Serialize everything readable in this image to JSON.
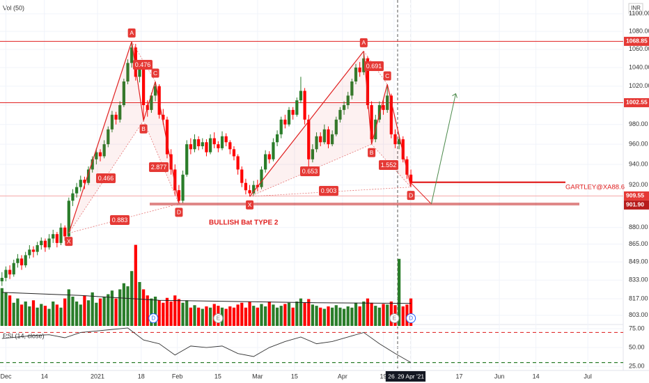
{
  "chart_data": {
    "type": "candlestick",
    "currency": "INR",
    "xlim": [
      -0.5,
      158
    ],
    "ylim": [
      793,
      1116
    ],
    "log_scale": true,
    "grid": true,
    "up_color": "#2a7d2a",
    "down_color": "#ff0000",
    "yticks": [
      {
        "value": 1100,
        "label": "1100.00"
      },
      {
        "value": 1080,
        "label": "1080.00"
      },
      {
        "value": 1060,
        "label": "1060.00"
      },
      {
        "value": 1040,
        "label": "1040.00"
      },
      {
        "value": 1020,
        "label": "1020.00"
      },
      {
        "value": 1000,
        "label": "1000.00"
      },
      {
        "value": 980,
        "label": "980.00"
      },
      {
        "value": 960,
        "label": "960.00"
      },
      {
        "value": 940,
        "label": "940.00"
      },
      {
        "value": 920,
        "label": "920.00"
      },
      {
        "value": 880,
        "label": "880.00"
      },
      {
        "value": 865,
        "label": "865.00"
      },
      {
        "value": 849,
        "label": "849.00"
      },
      {
        "value": 833,
        "label": "833.00"
      },
      {
        "value": 817,
        "label": "817.00"
      },
      {
        "value": 803,
        "label": "803.00"
      }
    ],
    "xticks": [
      {
        "value": 1,
        "label": "Dec"
      },
      {
        "value": 10.8,
        "label": "14"
      },
      {
        "value": 24.3,
        "label": "2021"
      },
      {
        "value": 35.4,
        "label": "18"
      },
      {
        "value": 44.6,
        "label": "Feb"
      },
      {
        "value": 54.9,
        "label": "15"
      },
      {
        "value": 65,
        "label": "Mar"
      },
      {
        "value": 74.4,
        "label": "15"
      },
      {
        "value": 86.6,
        "label": "Apr"
      },
      {
        "value": 97,
        "label": "19"
      },
      {
        "value": 99.7,
        "label": "26 A"
      },
      {
        "value": 104,
        "label": "29 Apr '21"
      },
      {
        "value": 116.3,
        "label": "17"
      },
      {
        "value": 126.5,
        "label": "Jun"
      },
      {
        "value": 135.8,
        "label": "14"
      },
      {
        "value": 149,
        "label": "Jul"
      }
    ],
    "candles": [
      [
        832,
        840,
        828,
        835
      ],
      [
        835,
        845,
        832,
        842
      ],
      [
        842,
        846,
        834,
        838
      ],
      [
        838,
        851,
        836,
        848
      ],
      [
        848,
        856,
        844,
        852
      ],
      [
        852,
        855,
        842,
        846
      ],
      [
        846,
        858,
        844,
        855
      ],
      [
        855,
        864,
        852,
        860
      ],
      [
        860,
        863,
        853,
        858
      ],
      [
        858,
        867,
        855,
        864
      ],
      [
        864,
        871,
        860,
        868
      ],
      [
        868,
        870,
        858,
        862
      ],
      [
        862,
        874,
        860,
        870
      ],
      [
        870,
        878,
        866,
        874
      ],
      [
        874,
        876,
        862,
        866
      ],
      [
        866,
        884,
        864,
        880
      ],
      [
        880,
        882,
        868,
        872
      ],
      [
        872,
        908,
        870,
        905
      ],
      [
        905,
        916,
        900,
        912
      ],
      [
        912,
        922,
        908,
        918
      ],
      [
        918,
        929,
        914,
        925
      ],
      [
        925,
        928,
        916,
        922
      ],
      [
        922,
        938,
        920,
        935
      ],
      [
        935,
        948,
        932,
        945
      ],
      [
        945,
        956,
        940,
        952
      ],
      [
        952,
        955,
        943,
        948
      ],
      [
        948,
        964,
        946,
        960
      ],
      [
        960,
        978,
        957,
        975
      ],
      [
        975,
        994,
        972,
        990
      ],
      [
        990,
        993,
        980,
        985
      ],
      [
        985,
        1004,
        982,
        1000
      ],
      [
        1000,
        1028,
        998,
        1025
      ],
      [
        1025,
        1049,
        1022,
        1045
      ],
      [
        1045,
        1068.85,
        1040,
        1062
      ],
      [
        1062,
        1066,
        1026,
        1030
      ],
      [
        1030,
        1046,
        1024,
        1042
      ],
      [
        1042,
        1044,
        984,
        1000
      ],
      [
        1000,
        1005,
        988,
        995
      ],
      [
        995,
        1013,
        992,
        1010
      ],
      [
        1010,
        1025,
        1004,
        1020
      ],
      [
        1020,
        1022,
        986,
        990
      ],
      [
        990,
        996,
        980,
        985
      ],
      [
        985,
        988,
        946,
        950
      ],
      [
        950,
        955,
        930,
        935
      ],
      [
        935,
        940,
        910,
        915
      ],
      [
        915,
        920,
        902,
        905
      ],
      [
        905,
        934,
        903,
        930
      ],
      [
        930,
        964,
        928,
        960
      ],
      [
        960,
        966,
        950,
        955
      ],
      [
        955,
        970,
        952,
        965
      ],
      [
        965,
        968,
        954,
        958
      ],
      [
        958,
        966,
        955,
        962
      ],
      [
        962,
        965,
        948,
        952
      ],
      [
        952,
        970,
        950,
        966
      ],
      [
        966,
        972,
        956,
        960
      ],
      [
        960,
        963,
        952,
        956
      ],
      [
        956,
        973,
        954,
        968
      ],
      [
        968,
        971,
        958,
        962
      ],
      [
        962,
        964,
        950,
        955
      ],
      [
        955,
        958,
        944,
        948
      ],
      [
        948,
        950,
        930,
        935
      ],
      [
        935,
        938,
        918,
        922
      ],
      [
        922,
        926,
        911,
        915
      ],
      [
        915,
        920,
        909,
        912
      ],
      [
        912,
        924,
        910,
        920
      ],
      [
        920,
        925,
        914,
        918
      ],
      [
        918,
        938,
        916,
        935
      ],
      [
        935,
        954,
        932,
        950
      ],
      [
        950,
        953,
        941,
        945
      ],
      [
        945,
        966,
        943,
        962
      ],
      [
        962,
        974,
        958,
        970
      ],
      [
        970,
        988,
        966,
        985
      ],
      [
        985,
        990,
        976,
        980
      ],
      [
        980,
        998,
        978,
        995
      ],
      [
        995,
        998,
        985,
        990
      ],
      [
        990,
        1008,
        988,
        1005
      ],
      [
        1005,
        1030,
        1002,
        1015
      ],
      [
        1015,
        1018,
        980,
        985
      ],
      [
        985,
        990,
        938,
        945
      ],
      [
        945,
        960,
        942,
        955
      ],
      [
        955,
        972,
        952,
        968
      ],
      [
        968,
        972,
        958,
        962
      ],
      [
        962,
        980,
        960,
        975
      ],
      [
        975,
        978,
        956,
        960
      ],
      [
        960,
        974,
        958,
        970
      ],
      [
        970,
        988,
        968,
        985
      ],
      [
        985,
        998,
        982,
        995
      ],
      [
        995,
        1004,
        990,
        1000
      ],
      [
        1000,
        1014,
        996,
        1010
      ],
      [
        1010,
        1028,
        1006,
        1025
      ],
      [
        1025,
        1044,
        1022,
        1040
      ],
      [
        1040,
        1046,
        1030,
        1035
      ],
      [
        1035,
        1058,
        1032,
        1050
      ],
      [
        1050,
        1052,
        996,
        1000
      ],
      [
        1000,
        1004,
        960,
        965
      ],
      [
        965,
        990,
        962,
        985
      ],
      [
        985,
        1004,
        982,
        1000
      ],
      [
        1000,
        1006,
        990,
        995
      ],
      [
        995,
        1022,
        992,
        1010
      ],
      [
        1010,
        1012,
        966,
        970
      ],
      [
        970,
        975,
        956,
        960
      ],
      [
        960,
        970,
        955,
        965
      ],
      [
        965,
        968,
        942,
        945
      ],
      [
        945,
        948,
        926,
        930
      ],
      [
        930,
        935,
        918,
        922
      ]
    ],
    "volume": {
      "title": "Vol (50)",
      "ylim": [
        0,
        1.6
      ],
      "values": [
        0.62,
        0.55,
        0.5,
        0.38,
        0.45,
        0.35,
        0.4,
        0.32,
        0.42,
        0.3,
        0.36,
        0.33,
        0.28,
        0.4,
        0.35,
        0.3,
        0.45,
        0.6,
        0.48,
        0.4,
        0.35,
        0.5,
        0.42,
        0.55,
        0.38,
        0.45,
        0.48,
        0.52,
        0.58,
        0.45,
        0.6,
        0.7,
        0.65,
        0.9,
        1.33,
        0.72,
        0.6,
        0.5,
        0.45,
        0.48,
        0.42,
        0.38,
        0.46,
        0.4,
        0.5,
        0.44,
        0.38,
        0.42,
        0.3,
        0.34,
        0.3,
        0.28,
        0.32,
        0.3,
        0.36,
        0.33,
        0.3,
        0.28,
        0.32,
        0.3,
        0.35,
        0.38,
        0.3,
        0.4,
        0.33,
        0.3,
        0.36,
        0.32,
        0.4,
        0.35,
        0.3,
        0.33,
        0.36,
        0.38,
        0.3,
        0.4,
        0.45,
        0.38,
        0.44,
        0.35,
        0.33,
        0.3,
        0.28,
        0.32,
        0.3,
        0.34,
        0.3,
        0.28,
        0.32,
        0.3,
        0.38,
        0.32,
        0.4,
        0.45,
        0.38,
        0.33,
        0.3,
        0.36,
        0.35,
        0.4,
        0.34,
        1.1,
        0.32,
        0.35,
        0.45
      ],
      "ma": {
        "x": [
          0,
          20,
          40,
          60,
          80,
          104
        ],
        "values": [
          0.55,
          0.5,
          0.42,
          0.4,
          0.38,
          0.37
        ],
        "color": "#222222"
      }
    },
    "events": [
      {
        "x": 38.5,
        "label": "D"
      },
      {
        "x": 55,
        "label": "E"
      },
      {
        "x": 99.8,
        "label": "E"
      },
      {
        "x": 104,
        "label": "D"
      }
    ],
    "price_levels": [
      1068.85,
      1002.55,
      909.55,
      {
        "value": 901.9,
        "label": "901.90"
      }
    ],
    "patterns": [
      {
        "points": [
          {
            "x": 17,
            "price": 875,
            "label": "X"
          },
          {
            "x": 33,
            "price": 1068.85,
            "label": "A"
          },
          {
            "x": 36,
            "price": 984,
            "label": "B"
          },
          {
            "x": 39,
            "price": 1025,
            "label": "C"
          },
          {
            "x": 45,
            "price": 902,
            "label": "D"
          }
        ],
        "ratios": [
          0.466,
          0.476,
          2.877,
          0.883
        ]
      },
      {
        "points": [
          {
            "x": 63,
            "price": 909,
            "label": "X"
          },
          {
            "x": 92,
            "price": 1058,
            "label": "A"
          },
          {
            "x": 94,
            "price": 960,
            "label": "B"
          },
          {
            "x": 98,
            "price": 1022,
            "label": "C"
          },
          {
            "x": 104,
            "price": 918,
            "label": "D"
          }
        ],
        "ratios": [
          0.653,
          0.691,
          1.552,
          0.903
        ]
      }
    ],
    "pattern_title": "BULLISH Bat TYPE 2",
    "gartley": {
      "label": "GARTLEY@XA88.6",
      "value": 922.6
    },
    "projection": {
      "x": [
        104,
        109.2,
        115.4
      ],
      "values": [
        922,
        902,
        1012
      ]
    },
    "rsi": {
      "title": "RSI (14, close)",
      "ylim": [
        17.6,
        80.6
      ],
      "yticks": [
        {
          "value": 75,
          "label": "75.00"
        },
        {
          "value": 50,
          "label": "50.00"
        },
        {
          "value": 25,
          "label": "25.00"
        }
      ],
      "levels": [
        {
          "value": 70,
          "color": "#e03030"
        },
        {
          "value": 30,
          "color": "#2a7d2a"
        }
      ],
      "x": [
        0,
        4,
        8,
        12,
        16,
        20,
        24,
        28,
        32,
        36,
        40,
        44,
        48,
        52,
        56,
        60,
        64,
        68,
        72,
        76,
        80,
        84,
        88,
        92,
        96,
        100,
        104
      ],
      "values": [
        62,
        64,
        66,
        67,
        63,
        70,
        72,
        74,
        76,
        60,
        55,
        40,
        52,
        50,
        52,
        42,
        38,
        50,
        58,
        64,
        55,
        58,
        64,
        70,
        55,
        42,
        30
      ]
    }
  }
}
